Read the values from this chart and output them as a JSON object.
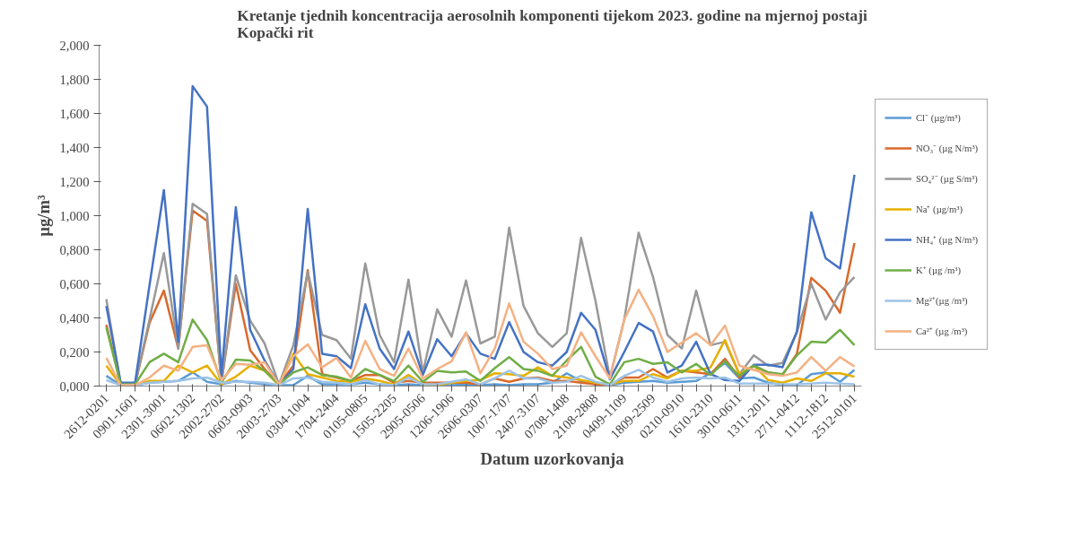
{
  "chart_data": {
    "type": "line",
    "title": "Kretanje tjednih koncentracija aerosolnih komponenti tijekom 2023. godine na mjernoj postaji Kopački rit",
    "xlabel": "Datum uzorkovanja",
    "ylabel": "µg/m³",
    "categories": [
      "2612-0201",
      null,
      "0901-1601",
      null,
      "2301-3001",
      null,
      "0602-1302",
      null,
      "2002-2702",
      null,
      "0603-0903",
      null,
      "2003-2703",
      null,
      "0304-1004",
      null,
      "1704-2404",
      null,
      "0105-0805",
      null,
      "1505-2205",
      null,
      "2905-0506",
      null,
      "1206-1906",
      null,
      "2606-0307",
      null,
      "1007-1707",
      null,
      "2407-3107",
      null,
      "0708-1408",
      null,
      "2108-2808",
      null,
      "0409-1109",
      null,
      "1809-2509",
      null,
      "0210-0910",
      null,
      "1610-2310",
      null,
      "3010-0611",
      null,
      "1311-2011",
      null,
      "2711-0412",
      null,
      "1112-1812",
      null,
      "2512-0101"
    ],
    "ylim": [
      0,
      2
    ],
    "yticks": [
      {
        "value": 0,
        "label": "0,000"
      },
      {
        "value": 0.2,
        "label": "0,200"
      },
      {
        "value": 0.4,
        "label": "0,400"
      },
      {
        "value": 0.6,
        "label": "0,600"
      },
      {
        "value": 0.8,
        "label": "0,800"
      },
      {
        "value": 1.0,
        "label": "1,000"
      },
      {
        "value": 1.2,
        "label": "1,200"
      },
      {
        "value": 1.4,
        "label": "1,400"
      },
      {
        "value": 1.6,
        "label": "1,600"
      },
      {
        "value": 1.8,
        "label": "1,800"
      },
      {
        "value": 2.0,
        "label": "2,000"
      }
    ],
    "grid": false,
    "legend": "right",
    "marker": "none",
    "line_style": "solid",
    "series": [
      {
        "name": "Cl⁻ (µg/m³)",
        "color": "#5b9bd5",
        "values": [
          0.06,
          0.005,
          0.005,
          0.02,
          0.025,
          0.03,
          0.08,
          0.025,
          0.01,
          0.03,
          0.02,
          0.01,
          0.005,
          0.005,
          0.06,
          0.01,
          0.01,
          0.01,
          0.02,
          0.01,
          0.005,
          0.01,
          0.005,
          0.005,
          0.005,
          0.01,
          0.005,
          0.01,
          0.005,
          0.01,
          0.01,
          0.02,
          0.075,
          0.03,
          0.01,
          0.005,
          0.02,
          0.025,
          0.03,
          0.02,
          0.025,
          0.03,
          0.075,
          0.135,
          0.045,
          0.05,
          0.02,
          0.005,
          0.005,
          0.07,
          0.08,
          0.025,
          0.095
        ]
      },
      {
        "name": "NO₃⁻ (µg N/m³)",
        "color": "#d9692b",
        "values": [
          0.36,
          0.01,
          0.01,
          0.37,
          0.56,
          0.22,
          1.03,
          0.97,
          0.02,
          0.6,
          0.21,
          0.1,
          0.01,
          0.12,
          0.68,
          0.07,
          0.05,
          0.03,
          0.065,
          0.065,
          0.02,
          0.03,
          0.02,
          0.02,
          0.02,
          0.02,
          0.01,
          0.045,
          0.025,
          0.045,
          0.05,
          0.03,
          0.03,
          0.02,
          0.01,
          0.005,
          0.05,
          0.05,
          0.1,
          0.05,
          0.09,
          0.08,
          0.07,
          0.16,
          0.05,
          0.12,
          0.08,
          0.065,
          0.19,
          0.635,
          0.56,
          0.43,
          0.84
        ]
      },
      {
        "name": "SO₄²⁻ (µg S/m³)",
        "color": "#999999",
        "values": [
          0.51,
          0.01,
          0.01,
          0.39,
          0.78,
          0.22,
          1.07,
          1.01,
          0.02,
          0.65,
          0.385,
          0.25,
          0.01,
          0.24,
          0.67,
          0.3,
          0.27,
          0.16,
          0.72,
          0.3,
          0.14,
          0.625,
          0.08,
          0.45,
          0.29,
          0.62,
          0.25,
          0.29,
          0.93,
          0.47,
          0.31,
          0.23,
          0.31,
          0.87,
          0.5,
          0.05,
          0.39,
          0.9,
          0.64,
          0.3,
          0.22,
          0.56,
          0.24,
          0.26,
          0.07,
          0.18,
          0.12,
          0.135,
          0.315,
          0.6,
          0.39,
          0.55,
          0.64
        ]
      },
      {
        "name": "Na⁺ (µg/m³)",
        "color": "#e6b000",
        "values": [
          0.12,
          0.005,
          0.005,
          0.03,
          0.03,
          0.12,
          0.08,
          0.12,
          0.01,
          0.055,
          0.12,
          0.09,
          0.005,
          0.19,
          0.07,
          0.05,
          0.03,
          0.025,
          0.045,
          0.03,
          0.01,
          0.065,
          0.01,
          0.005,
          0.02,
          0.03,
          0.035,
          0.075,
          0.07,
          0.06,
          0.11,
          0.06,
          0.05,
          0.035,
          0.02,
          0.01,
          0.03,
          0.03,
          0.07,
          0.045,
          0.09,
          0.09,
          0.11,
          0.27,
          0.07,
          0.12,
          0.035,
          0.02,
          0.045,
          0.03,
          0.075,
          0.075,
          0.055
        ]
      },
      {
        "name": "NH₄⁺ (µg N/m³)",
        "color": "#4472c4",
        "values": [
          0.47,
          0.02,
          0.02,
          0.59,
          1.15,
          0.26,
          1.76,
          1.64,
          0.06,
          1.05,
          0.33,
          0.15,
          0.01,
          0.1,
          1.04,
          0.19,
          0.175,
          0.105,
          0.48,
          0.22,
          0.1,
          0.32,
          0.065,
          0.275,
          0.175,
          0.31,
          0.19,
          0.16,
          0.375,
          0.2,
          0.14,
          0.12,
          0.2,
          0.43,
          0.33,
          0.04,
          0.2,
          0.37,
          0.32,
          0.08,
          0.12,
          0.26,
          0.07,
          0.035,
          0.03,
          0.125,
          0.125,
          0.11,
          0.32,
          1.02,
          0.75,
          0.69,
          1.24
        ]
      },
      {
        "name": "K⁺ (µg /m³)",
        "color": "#70ad47",
        "values": [
          0.345,
          0.01,
          0.01,
          0.14,
          0.19,
          0.14,
          0.39,
          0.27,
          0.02,
          0.155,
          0.15,
          0.09,
          0.01,
          0.08,
          0.11,
          0.065,
          0.055,
          0.03,
          0.1,
          0.065,
          0.03,
          0.12,
          0.025,
          0.09,
          0.08,
          0.085,
          0.03,
          0.105,
          0.17,
          0.1,
          0.09,
          0.06,
          0.15,
          0.23,
          0.055,
          0.01,
          0.14,
          0.16,
          0.13,
          0.14,
          0.08,
          0.13,
          0.065,
          0.145,
          0.06,
          0.12,
          0.08,
          0.07,
          0.18,
          0.26,
          0.255,
          0.33,
          0.24
        ]
      },
      {
        "name": "Mg²⁺(µg /m³)",
        "color": "#9dc3e6",
        "values": [
          0.035,
          0.005,
          0.005,
          0.02,
          0.025,
          0.03,
          0.045,
          0.05,
          0.02,
          0.025,
          0.025,
          0.02,
          0.005,
          0.045,
          0.05,
          0.025,
          0.02,
          0.01,
          0.035,
          0.01,
          0.005,
          0.05,
          0.01,
          0.01,
          0.025,
          0.04,
          0.01,
          0.045,
          0.09,
          0.045,
          0.045,
          0.02,
          0.025,
          0.06,
          0.025,
          0.005,
          0.06,
          0.095,
          0.05,
          0.025,
          0.045,
          0.05,
          0.045,
          0.05,
          0.015,
          0.015,
          0.015,
          0.01,
          0.01,
          0.015,
          0.02,
          0.015,
          0.01
        ]
      },
      {
        "name": "Ca²⁺ (µg /m³)",
        "color": "#f4b183",
        "values": [
          0.165,
          0.005,
          0.005,
          0.05,
          0.12,
          0.09,
          0.23,
          0.24,
          0.035,
          0.13,
          0.125,
          0.14,
          0.01,
          0.175,
          0.245,
          0.11,
          0.165,
          0.05,
          0.265,
          0.1,
          0.06,
          0.22,
          0.045,
          0.1,
          0.145,
          0.315,
          0.075,
          0.22,
          0.485,
          0.26,
          0.19,
          0.1,
          0.12,
          0.315,
          0.175,
          0.045,
          0.39,
          0.565,
          0.41,
          0.2,
          0.255,
          0.31,
          0.24,
          0.355,
          0.12,
          0.095,
          0.07,
          0.06,
          0.08,
          0.17,
          0.09,
          0.17,
          0.115
        ]
      }
    ]
  }
}
